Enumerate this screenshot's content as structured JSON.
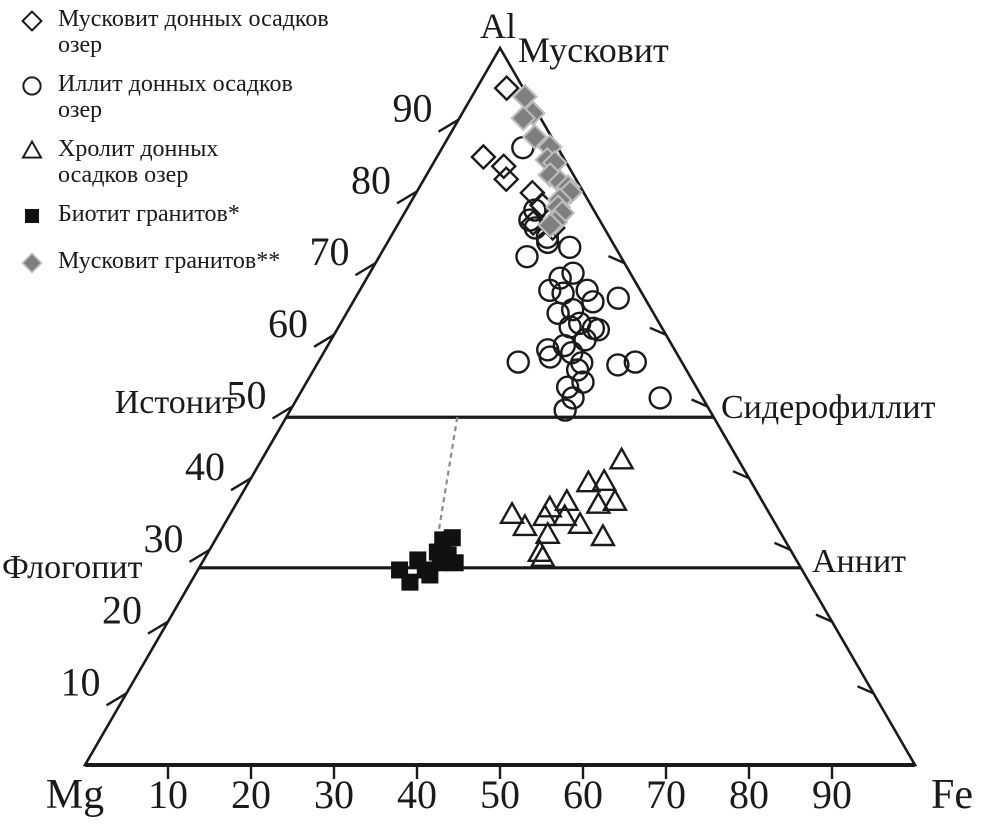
{
  "figure_labels": {
    "apex_element": "Al",
    "apex_mineral": "Мусковит",
    "left_corner": "Mg",
    "right_corner": "Fe",
    "upper_left_field": "Истонит",
    "upper_right_field": "Сидерофиллит",
    "lower_left_field": "Флогопит",
    "lower_right_field": "Аннит"
  },
  "legend": {
    "items": [
      {
        "marker": "diamond-open-icon",
        "lines": [
          "Мусковит донных осадков",
          "озер"
        ]
      },
      {
        "marker": "circle-open-icon",
        "lines": [
          "Иллит донных осадков",
          "озер"
        ]
      },
      {
        "marker": "triangle-open-icon",
        "lines": [
          "Хролит донных",
          "осадков озер"
        ]
      },
      {
        "marker": "square-filled-icon",
        "lines": [
          "Биотит гранитов*"
        ]
      },
      {
        "marker": "diamond-gray-icon",
        "lines": [
          "Мусковит гранитов**"
        ]
      }
    ]
  },
  "axes": {
    "left_tick_labels": [
      "90",
      "80",
      "70",
      "60",
      "50",
      "40",
      "30",
      "20",
      "10"
    ],
    "bottom_tick_labels": [
      "10",
      "20",
      "30",
      "40",
      "50",
      "60",
      "70",
      "80",
      "90"
    ],
    "right_ticks_unlabeled": [
      80,
      70,
      60,
      50,
      40,
      30,
      20,
      10
    ]
  },
  "colors": {
    "ink": "#1a1a1a",
    "gray_marker": "#7f7f7f",
    "gray_marker_halo": "#bcbcbc",
    "dashed_divider": "#8c8c8c"
  },
  "chart_data": {
    "type": "scatter",
    "subtype": "ternary",
    "axes": {
      "top": "Al",
      "bottom_left": "Mg",
      "bottom_right": "Fe",
      "scale": [
        0,
        100
      ]
    },
    "point_format": "[Al%, Fe%]; Mg% = 100 - Al - Fe",
    "boundary_lines": [
      {
        "name": "Истонит — Сидерофиллит",
        "al": 48.5
      },
      {
        "name": "Флогопит — Аннит",
        "al": 27.5
      }
    ],
    "divider_dashed": {
      "from": {
        "al": 48.5,
        "fe": 20.6
      },
      "to": {
        "al": 29.3,
        "fe": 27.5
      }
    },
    "series": [
      {
        "name": "Мусковит донных осадков озер",
        "marker": "diamond-open",
        "points": [
          [
            94.4,
            3.6
          ],
          [
            84.8,
            5.6
          ],
          [
            83.5,
            8.7
          ],
          [
            81.7,
            9.9
          ],
          [
            79.8,
            14.0
          ],
          [
            78.1,
            16.0
          ],
          [
            75.6,
            16.2
          ],
          [
            74.9,
            18.9
          ]
        ]
      },
      {
        "name": "Иллит донных осадков озер",
        "marker": "circle-open",
        "points": [
          [
            86.1,
            9.7
          ],
          [
            77.4,
            15.5
          ],
          [
            76.0,
            15.6
          ],
          [
            74.9,
            16.8
          ],
          [
            73.6,
            18.9
          ],
          [
            72.9,
            19.3
          ],
          [
            72.2,
            22.3
          ],
          [
            70.9,
            17.8
          ],
          [
            68.6,
            24.5
          ],
          [
            67.9,
            23.3
          ],
          [
            66.2,
            22.9
          ],
          [
            65.8,
            24.7
          ],
          [
            66.2,
            27.4
          ],
          [
            64.6,
            28.9
          ],
          [
            65.1,
            31.7
          ],
          [
            63.5,
            27.0
          ],
          [
            63.0,
            25.5
          ],
          [
            61.6,
            28.8
          ],
          [
            61.1,
            27.9
          ],
          [
            60.9,
            30.8
          ],
          [
            60.7,
            31.5
          ],
          [
            59.3,
            30.6
          ],
          [
            58.5,
            28.5
          ],
          [
            57.9,
            26.8
          ],
          [
            57.5,
            29.9
          ],
          [
            56.9,
            27.6
          ],
          [
            56.2,
            24.1
          ],
          [
            56.2,
            38.2
          ],
          [
            56.1,
            31.8
          ],
          [
            55.8,
            36.3
          ],
          [
            55.1,
            31.8
          ],
          [
            53.4,
            33.3
          ],
          [
            52.7,
            31.8
          ],
          [
            51.2,
            43.7
          ],
          [
            51.2,
            33.2
          ],
          [
            49.5,
            33.1
          ]
        ]
      },
      {
        "name": "Хролит донных осадков озер",
        "marker": "triangle-open",
        "points": [
          [
            42.5,
            43.4
          ],
          [
            39.3,
            41.0
          ],
          [
            39.5,
            42.8
          ],
          [
            36.3,
            43.7
          ],
          [
            36.7,
            45.5
          ],
          [
            35.8,
            38.1
          ],
          [
            36.7,
            39.7
          ],
          [
            34.9,
            34.0
          ],
          [
            33.2,
            36.4
          ],
          [
            34.6,
            38.1
          ],
          [
            34.6,
            40.5
          ],
          [
            33.5,
            42.9
          ],
          [
            32.1,
            39.7
          ],
          [
            31.8,
            46.5
          ],
          [
            29.6,
            40.0
          ],
          [
            28.9,
            40.7
          ]
        ]
      },
      {
        "name": "Биотит гранитов*",
        "marker": "square-filled",
        "points": [
          [
            27.2,
            24.3
          ],
          [
            25.5,
            26.4
          ],
          [
            28.6,
            25.8
          ],
          [
            27.2,
            27.4
          ],
          [
            26.5,
            28.3
          ],
          [
            29.7,
            27.6
          ],
          [
            28.2,
            28.7
          ],
          [
            31.4,
            27.4
          ],
          [
            29.3,
            29.1
          ],
          [
            31.7,
            28.4
          ],
          [
            28.2,
            30.5
          ]
        ]
      },
      {
        "name": "Мусковит гранитов**",
        "marker": "diamond-gray",
        "points": [
          [
            93.2,
            6.4
          ],
          [
            90.9,
            8.5
          ],
          [
            90.2,
            7.7
          ],
          [
            87.6,
            10.4
          ],
          [
            86.2,
            12.9
          ],
          [
            84.4,
            13.5
          ],
          [
            84.0,
            14.6
          ],
          [
            82.3,
            14.9
          ],
          [
            81.3,
            16.6
          ],
          [
            80.6,
            17.9
          ],
          [
            79.9,
            18.5
          ],
          [
            78.8,
            17.8
          ],
          [
            77.8,
            18.1
          ],
          [
            77.0,
            19.0
          ],
          [
            75.7,
            18.8
          ],
          [
            75.3,
            18.4
          ]
        ]
      }
    ]
  }
}
